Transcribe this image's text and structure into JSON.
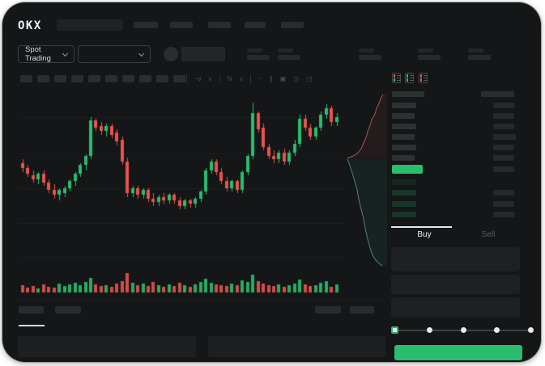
{
  "header": {
    "logo_text": "OKX",
    "nav_placeholder_count": 5,
    "search_placeholder": true
  },
  "subheader": {
    "market_selector_label": "Spot Trading",
    "pair_selector_placeholder": true,
    "stat_placeholder_count": 5
  },
  "chart_toolbar": {
    "block_count": 10,
    "items": [
      {
        "type": "sep"
      },
      {
        "type": "icon",
        "name": "interval-icon",
        "glyph": "~v"
      },
      {
        "type": "icon",
        "name": "chart-type-icon",
        "glyph": "v"
      },
      {
        "type": "sep"
      },
      {
        "type": "icon",
        "name": "indicators-icon",
        "glyph": "fx"
      },
      {
        "type": "icon",
        "name": "compare-icon",
        "glyph": "v"
      },
      {
        "type": "sep"
      },
      {
        "type": "icon",
        "name": "line-tool-icon",
        "glyph": "~"
      },
      {
        "type": "icon",
        "name": "draw-tools-icon",
        "glyph": "∥"
      },
      {
        "type": "icon",
        "name": "screenshot-icon",
        "glyph": "▣"
      },
      {
        "type": "icon",
        "name": "history-icon",
        "glyph": "◷"
      },
      {
        "type": "icon",
        "name": "fullscreen-icon",
        "glyph": "◳"
      }
    ]
  },
  "chart_data": {
    "type": "candlestick",
    "title": "",
    "ylim": [
      0,
      100
    ],
    "grid": true,
    "colors": {
      "up": "#2abd6e",
      "down": "#e8534e"
    },
    "candles": [
      [
        61,
        63,
        56,
        58
      ],
      [
        58,
        60,
        53,
        55
      ],
      [
        54,
        57,
        50,
        52
      ],
      [
        52,
        56,
        49,
        55
      ],
      [
        55,
        57,
        48,
        50
      ],
      [
        50,
        52,
        44,
        46
      ],
      [
        46,
        49,
        41,
        43
      ],
      [
        43,
        47,
        40,
        46
      ],
      [
        44,
        48,
        42,
        47
      ],
      [
        47,
        52,
        45,
        51
      ],
      [
        51,
        56,
        48,
        55
      ],
      [
        55,
        61,
        53,
        60
      ],
      [
        60,
        66,
        57,
        65
      ],
      [
        65,
        87,
        63,
        85
      ],
      [
        85,
        86,
        79,
        81
      ],
      [
        82,
        84,
        77,
        79
      ],
      [
        79,
        83,
        76,
        82
      ],
      [
        82,
        83,
        75,
        77
      ],
      [
        78,
        80,
        71,
        73
      ],
      [
        74,
        76,
        60,
        62
      ],
      [
        62,
        64,
        42,
        44
      ],
      [
        44,
        48,
        42,
        47
      ],
      [
        47,
        48,
        41,
        43
      ],
      [
        43,
        47,
        41,
        46
      ],
      [
        46,
        47,
        39,
        41
      ],
      [
        41,
        44,
        37,
        39
      ],
      [
        39,
        43,
        37,
        42
      ],
      [
        42,
        44,
        38,
        40
      ],
      [
        40,
        44,
        38,
        43
      ],
      [
        43,
        44,
        38,
        40
      ],
      [
        40,
        42,
        35,
        37
      ],
      [
        37,
        41,
        35,
        40
      ],
      [
        40,
        41,
        36,
        38
      ],
      [
        38,
        42,
        36,
        41
      ],
      [
        41,
        46,
        39,
        45
      ],
      [
        45,
        58,
        43,
        57
      ],
      [
        57,
        63,
        55,
        62
      ],
      [
        62,
        63,
        54,
        56
      ],
      [
        56,
        58,
        49,
        51
      ],
      [
        51,
        53,
        45,
        47
      ],
      [
        47,
        52,
        45,
        51
      ],
      [
        51,
        52,
        44,
        46
      ],
      [
        46,
        57,
        44,
        56
      ],
      [
        56,
        66,
        54,
        65
      ],
      [
        65,
        95,
        63,
        89
      ],
      [
        89,
        90,
        78,
        80
      ],
      [
        81,
        83,
        68,
        70
      ],
      [
        70,
        72,
        63,
        65
      ],
      [
        65,
        68,
        61,
        63
      ],
      [
        63,
        68,
        61,
        67
      ],
      [
        67,
        69,
        60,
        62
      ],
      [
        62,
        68,
        60,
        67
      ],
      [
        67,
        74,
        65,
        72
      ],
      [
        72,
        88,
        70,
        86
      ],
      [
        86,
        88,
        79,
        81
      ],
      [
        81,
        83,
        74,
        76
      ],
      [
        76,
        82,
        74,
        81
      ],
      [
        81,
        90,
        79,
        88
      ],
      [
        88,
        94,
        86,
        92
      ],
      [
        92,
        93,
        82,
        84
      ],
      [
        84,
        89,
        82,
        87
      ]
    ],
    "volume": [
      9,
      6,
      8,
      5,
      10,
      7,
      6,
      11,
      8,
      10,
      12,
      9,
      13,
      18,
      10,
      8,
      9,
      7,
      11,
      14,
      24,
      12,
      9,
      11,
      8,
      13,
      9,
      7,
      10,
      8,
      12,
      9,
      7,
      10,
      13,
      17,
      12,
      10,
      9,
      8,
      11,
      9,
      15,
      13,
      22,
      14,
      11,
      9,
      8,
      10,
      7,
      9,
      11,
      16,
      10,
      8,
      9,
      12,
      14,
      7,
      10
    ],
    "depth": {
      "asks_line": [
        [
          47,
          13
        ],
        [
          44,
          18
        ],
        [
          42,
          24
        ],
        [
          39,
          30
        ],
        [
          37,
          37
        ],
        [
          33,
          44
        ],
        [
          31,
          51
        ],
        [
          28,
          59
        ],
        [
          26,
          66
        ],
        [
          23,
          73
        ],
        [
          20,
          80
        ],
        [
          16,
          85
        ],
        [
          10,
          89
        ],
        [
          3,
          92
        ]
      ],
      "bids_line": [
        [
          3,
          93
        ],
        [
          6,
          101
        ],
        [
          9,
          110
        ],
        [
          12,
          120
        ],
        [
          15,
          131
        ],
        [
          17,
          143
        ],
        [
          20,
          155
        ],
        [
          23,
          167
        ],
        [
          25,
          179
        ],
        [
          28,
          192
        ],
        [
          31,
          203
        ],
        [
          34,
          212
        ],
        [
          38,
          218
        ],
        [
          42,
          222
        ],
        [
          46,
          225
        ]
      ],
      "ask_color": "#c06a63",
      "bid_color": "#6aa392"
    }
  },
  "orderbook": {
    "view_modes": [
      {
        "name": "book-combined-icon",
        "top": "#e8534e",
        "bottom": "#2abd6e"
      },
      {
        "name": "book-bids-icon",
        "top": "#2abd6e",
        "bottom": "#2abd6e"
      },
      {
        "name": "book-asks-icon",
        "top": "#e8534e",
        "bottom": "#e8534e"
      }
    ],
    "header_row": {
      "l": 40,
      "r": 41
    },
    "asks": [
      {
        "l": 30,
        "r": 26
      },
      {
        "l": 28,
        "r": 26
      },
      {
        "l": 30,
        "r": 26
      },
      {
        "l": 28,
        "r": 28
      },
      {
        "l": 30,
        "r": 26
      },
      {
        "l": 28,
        "r": 26
      }
    ],
    "last_price_row": {
      "l": 38,
      "r": 26,
      "color": "#2abd6e"
    },
    "bids": [
      {
        "l": 30,
        "r": 0,
        "dim": true
      },
      {
        "l": 30,
        "r": 26
      },
      {
        "l": 30,
        "r": 26
      },
      {
        "l": 30,
        "r": 26
      }
    ]
  },
  "trade_panel": {
    "tabs": [
      {
        "label": "Buy",
        "active": true
      },
      {
        "label": "Sell",
        "active": false
      }
    ],
    "field_count": 3,
    "slider": {
      "stops": 5,
      "active_index": 0
    },
    "submit_color": "#2abd6e"
  },
  "bottom_bar": {
    "tab_count": 2,
    "active_tab_index": 0,
    "right_button_count": 2,
    "panel_count": 2
  },
  "colors": {
    "accent_green": "#2abd6e",
    "accent_red": "#e8534e",
    "bg": "#141617"
  }
}
